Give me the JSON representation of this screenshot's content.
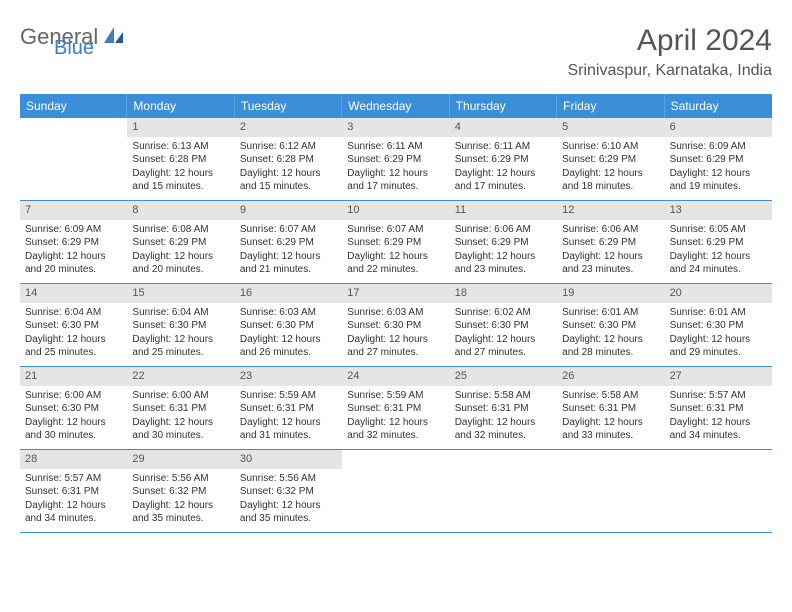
{
  "logo": {
    "part1": "General",
    "part2": "Blue"
  },
  "title": "April 2024",
  "location": "Srinivaspur, Karnataka, India",
  "colors": {
    "header_bg": "#3a8fd8",
    "header_text": "#ffffff",
    "daynum_bg": "#e5e5e5",
    "divider": "#3a8fd8",
    "body_text": "#333333",
    "logo_accent": "#3a7fc4"
  },
  "day_names": [
    "Sunday",
    "Monday",
    "Tuesday",
    "Wednesday",
    "Thursday",
    "Friday",
    "Saturday"
  ],
  "weeks": [
    [
      {
        "n": "",
        "sr": "",
        "ss": "",
        "dl": "",
        "empty": true
      },
      {
        "n": "1",
        "sr": "Sunrise: 6:13 AM",
        "ss": "Sunset: 6:28 PM",
        "dl": "Daylight: 12 hours and 15 minutes."
      },
      {
        "n": "2",
        "sr": "Sunrise: 6:12 AM",
        "ss": "Sunset: 6:28 PM",
        "dl": "Daylight: 12 hours and 15 minutes."
      },
      {
        "n": "3",
        "sr": "Sunrise: 6:11 AM",
        "ss": "Sunset: 6:29 PM",
        "dl": "Daylight: 12 hours and 17 minutes."
      },
      {
        "n": "4",
        "sr": "Sunrise: 6:11 AM",
        "ss": "Sunset: 6:29 PM",
        "dl": "Daylight: 12 hours and 17 minutes."
      },
      {
        "n": "5",
        "sr": "Sunrise: 6:10 AM",
        "ss": "Sunset: 6:29 PM",
        "dl": "Daylight: 12 hours and 18 minutes."
      },
      {
        "n": "6",
        "sr": "Sunrise: 6:09 AM",
        "ss": "Sunset: 6:29 PM",
        "dl": "Daylight: 12 hours and 19 minutes."
      }
    ],
    [
      {
        "n": "7",
        "sr": "Sunrise: 6:09 AM",
        "ss": "Sunset: 6:29 PM",
        "dl": "Daylight: 12 hours and 20 minutes."
      },
      {
        "n": "8",
        "sr": "Sunrise: 6:08 AM",
        "ss": "Sunset: 6:29 PM",
        "dl": "Daylight: 12 hours and 20 minutes."
      },
      {
        "n": "9",
        "sr": "Sunrise: 6:07 AM",
        "ss": "Sunset: 6:29 PM",
        "dl": "Daylight: 12 hours and 21 minutes."
      },
      {
        "n": "10",
        "sr": "Sunrise: 6:07 AM",
        "ss": "Sunset: 6:29 PM",
        "dl": "Daylight: 12 hours and 22 minutes."
      },
      {
        "n": "11",
        "sr": "Sunrise: 6:06 AM",
        "ss": "Sunset: 6:29 PM",
        "dl": "Daylight: 12 hours and 23 minutes."
      },
      {
        "n": "12",
        "sr": "Sunrise: 6:06 AM",
        "ss": "Sunset: 6:29 PM",
        "dl": "Daylight: 12 hours and 23 minutes."
      },
      {
        "n": "13",
        "sr": "Sunrise: 6:05 AM",
        "ss": "Sunset: 6:29 PM",
        "dl": "Daylight: 12 hours and 24 minutes."
      }
    ],
    [
      {
        "n": "14",
        "sr": "Sunrise: 6:04 AM",
        "ss": "Sunset: 6:30 PM",
        "dl": "Daylight: 12 hours and 25 minutes."
      },
      {
        "n": "15",
        "sr": "Sunrise: 6:04 AM",
        "ss": "Sunset: 6:30 PM",
        "dl": "Daylight: 12 hours and 25 minutes."
      },
      {
        "n": "16",
        "sr": "Sunrise: 6:03 AM",
        "ss": "Sunset: 6:30 PM",
        "dl": "Daylight: 12 hours and 26 minutes."
      },
      {
        "n": "17",
        "sr": "Sunrise: 6:03 AM",
        "ss": "Sunset: 6:30 PM",
        "dl": "Daylight: 12 hours and 27 minutes."
      },
      {
        "n": "18",
        "sr": "Sunrise: 6:02 AM",
        "ss": "Sunset: 6:30 PM",
        "dl": "Daylight: 12 hours and 27 minutes."
      },
      {
        "n": "19",
        "sr": "Sunrise: 6:01 AM",
        "ss": "Sunset: 6:30 PM",
        "dl": "Daylight: 12 hours and 28 minutes."
      },
      {
        "n": "20",
        "sr": "Sunrise: 6:01 AM",
        "ss": "Sunset: 6:30 PM",
        "dl": "Daylight: 12 hours and 29 minutes."
      }
    ],
    [
      {
        "n": "21",
        "sr": "Sunrise: 6:00 AM",
        "ss": "Sunset: 6:30 PM",
        "dl": "Daylight: 12 hours and 30 minutes."
      },
      {
        "n": "22",
        "sr": "Sunrise: 6:00 AM",
        "ss": "Sunset: 6:31 PM",
        "dl": "Daylight: 12 hours and 30 minutes."
      },
      {
        "n": "23",
        "sr": "Sunrise: 5:59 AM",
        "ss": "Sunset: 6:31 PM",
        "dl": "Daylight: 12 hours and 31 minutes."
      },
      {
        "n": "24",
        "sr": "Sunrise: 5:59 AM",
        "ss": "Sunset: 6:31 PM",
        "dl": "Daylight: 12 hours and 32 minutes."
      },
      {
        "n": "25",
        "sr": "Sunrise: 5:58 AM",
        "ss": "Sunset: 6:31 PM",
        "dl": "Daylight: 12 hours and 32 minutes."
      },
      {
        "n": "26",
        "sr": "Sunrise: 5:58 AM",
        "ss": "Sunset: 6:31 PM",
        "dl": "Daylight: 12 hours and 33 minutes."
      },
      {
        "n": "27",
        "sr": "Sunrise: 5:57 AM",
        "ss": "Sunset: 6:31 PM",
        "dl": "Daylight: 12 hours and 34 minutes."
      }
    ],
    [
      {
        "n": "28",
        "sr": "Sunrise: 5:57 AM",
        "ss": "Sunset: 6:31 PM",
        "dl": "Daylight: 12 hours and 34 minutes."
      },
      {
        "n": "29",
        "sr": "Sunrise: 5:56 AM",
        "ss": "Sunset: 6:32 PM",
        "dl": "Daylight: 12 hours and 35 minutes."
      },
      {
        "n": "30",
        "sr": "Sunrise: 5:56 AM",
        "ss": "Sunset: 6:32 PM",
        "dl": "Daylight: 12 hours and 35 minutes."
      },
      {
        "n": "",
        "sr": "",
        "ss": "",
        "dl": "",
        "empty": true
      },
      {
        "n": "",
        "sr": "",
        "ss": "",
        "dl": "",
        "empty": true
      },
      {
        "n": "",
        "sr": "",
        "ss": "",
        "dl": "",
        "empty": true
      },
      {
        "n": "",
        "sr": "",
        "ss": "",
        "dl": "",
        "empty": true
      }
    ]
  ]
}
